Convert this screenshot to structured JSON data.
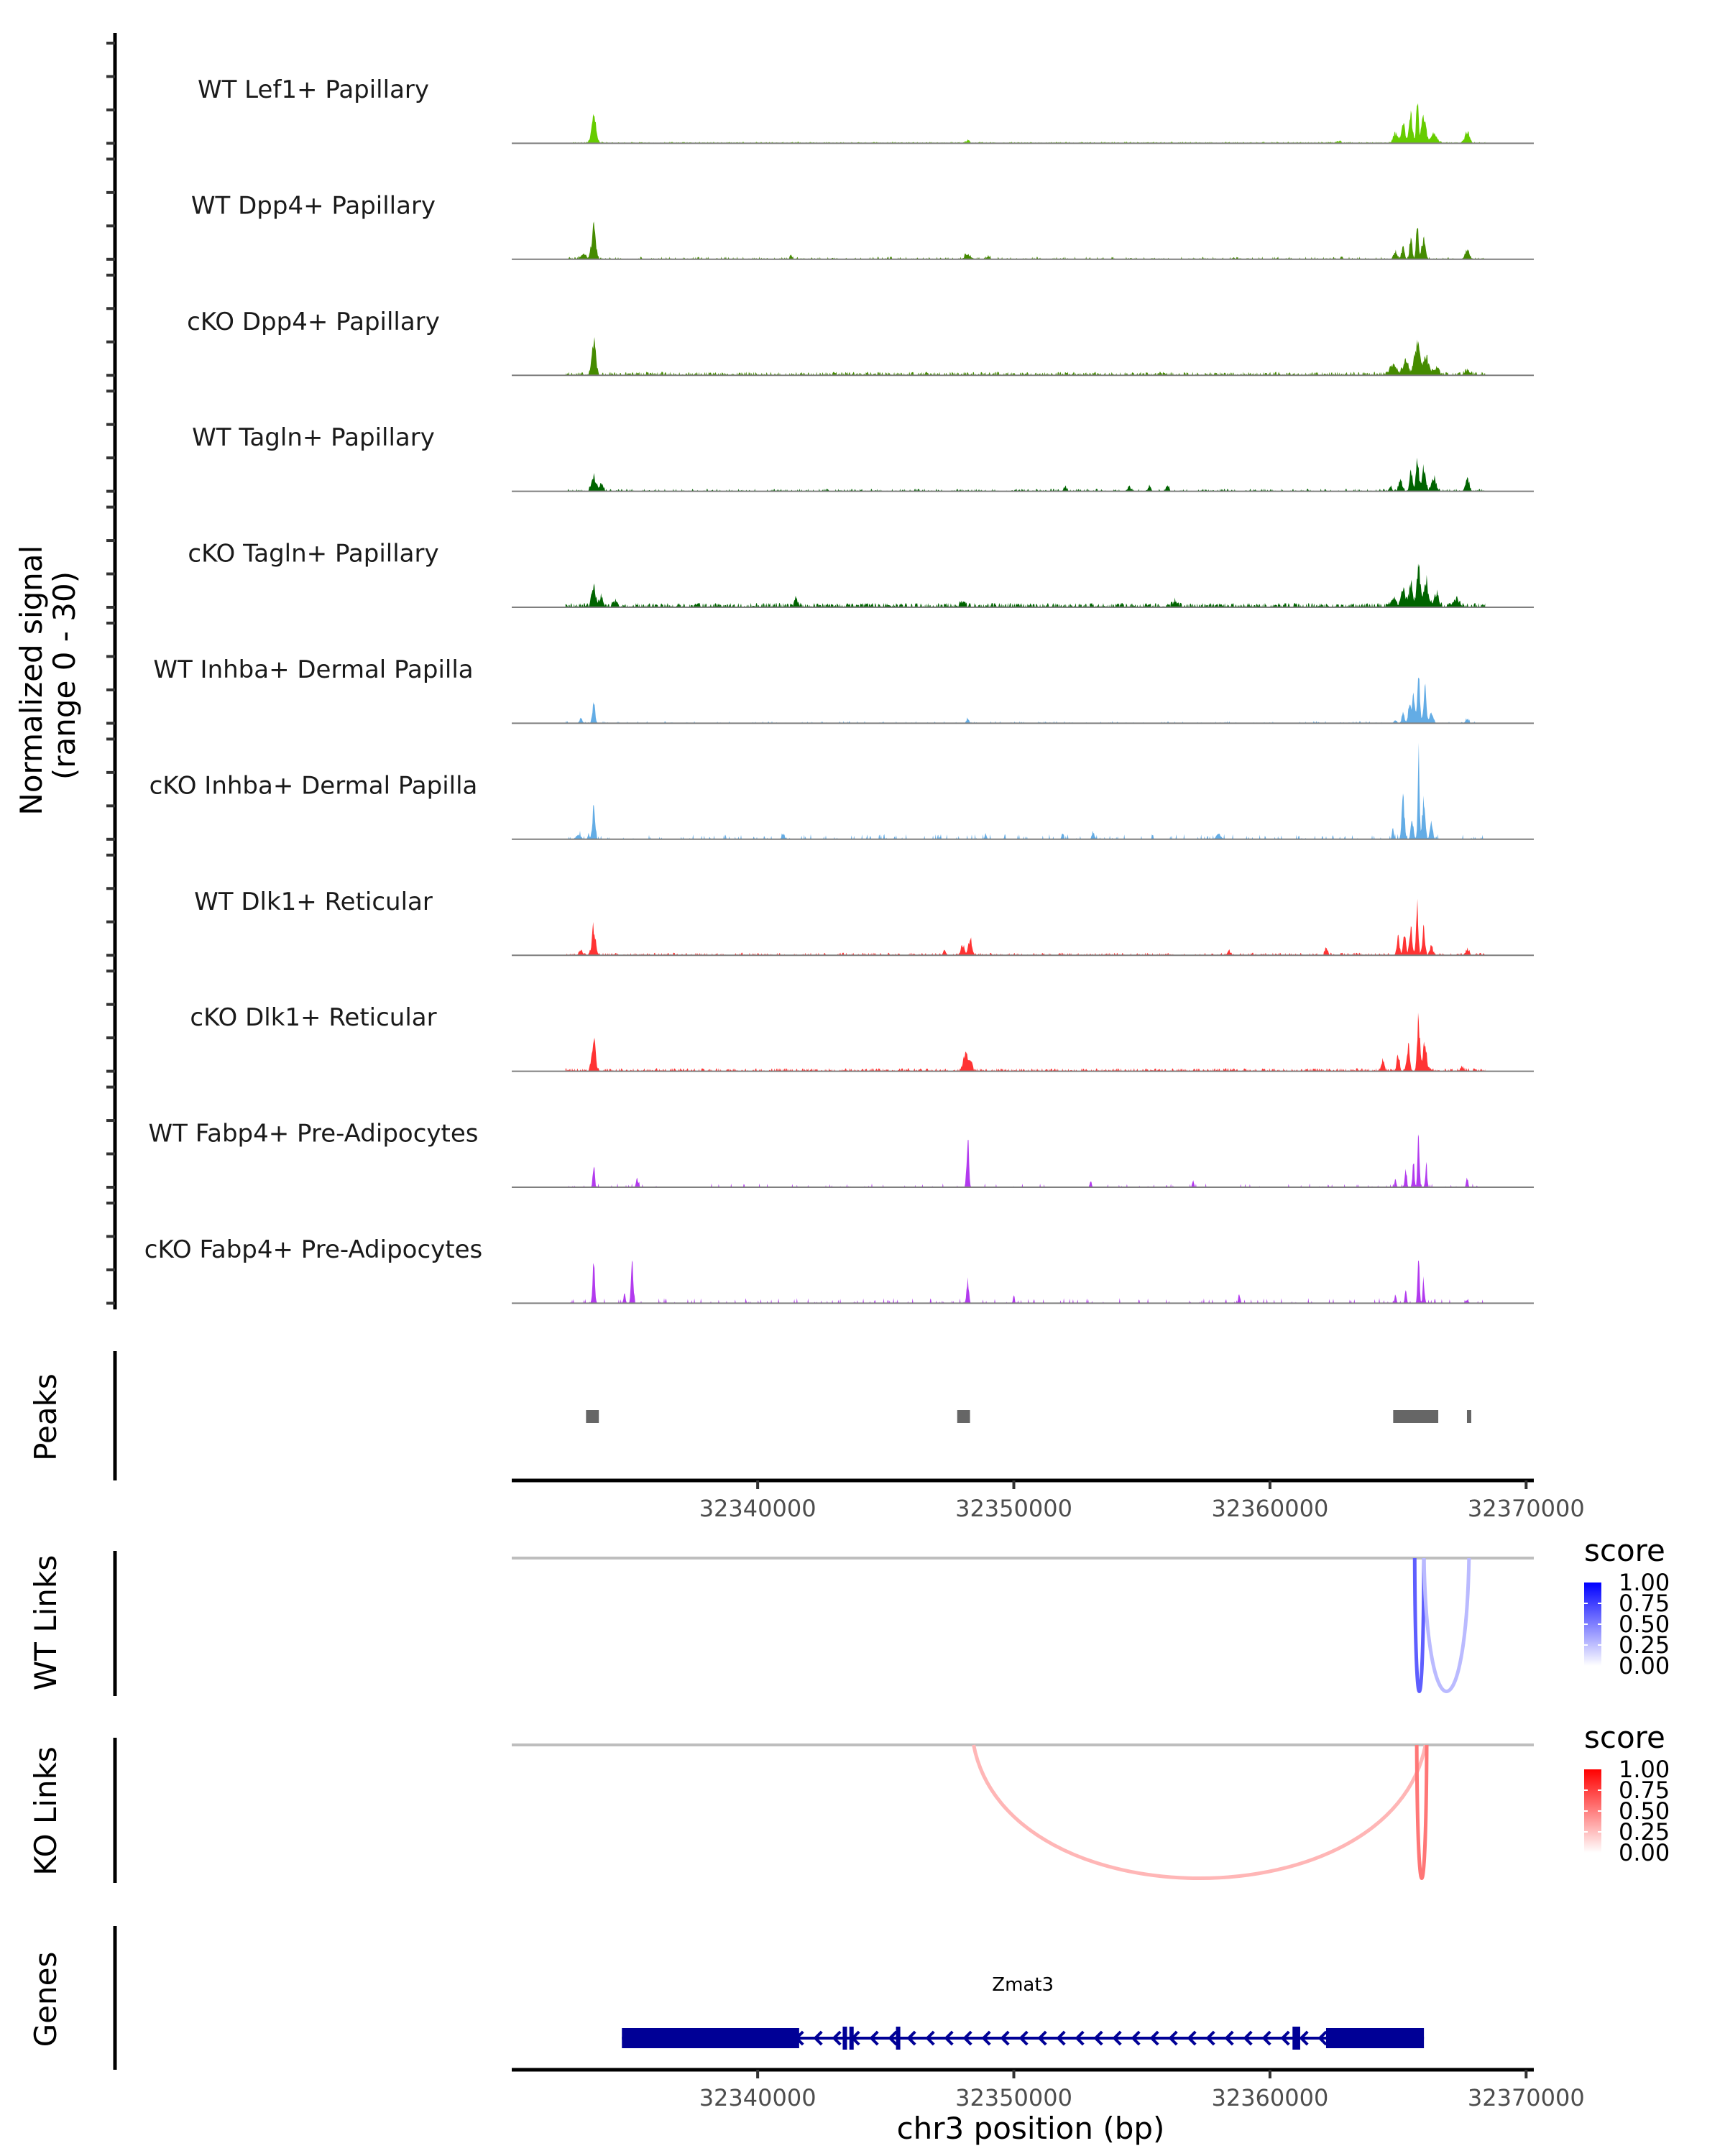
{
  "chart_data": {
    "type": "area",
    "title": "",
    "region": {
      "chromosome": "chr3",
      "start": 32330400,
      "end": 32370300
    },
    "xlabel": "chr3 position (bp)",
    "x_ticks": [
      32340000,
      32350000,
      32360000,
      32370000
    ],
    "x_tick_labels": [
      "32340000",
      "32350000",
      "32360000",
      "32370000"
    ],
    "coverage": {
      "ylabel_line1": "Normalized signal",
      "ylabel_line2": "(range 0 - 30)",
      "ylim": [
        0,
        30
      ],
      "y_ticks": [
        0,
        10,
        20,
        30
      ],
      "tracks": [
        {
          "name": "WT Lef1+ Papillary",
          "color": "#66CC00",
          "peaks": [
            [
              32333600,
              8,
              250
            ],
            [
              32364900,
              3,
              250
            ],
            [
              32365200,
              6,
              200
            ],
            [
              32365500,
              8,
              200
            ],
            [
              32365750,
              14,
              120
            ],
            [
              32366000,
              8,
              250
            ],
            [
              32366400,
              3,
              300
            ],
            [
              32367700,
              3.5,
              250
            ],
            [
              32348200,
              0.8,
              200
            ],
            [
              32362700,
              0.6,
              200
            ]
          ],
          "noise": 0.35,
          "noise_density": 0.55,
          "seed": 1
        },
        {
          "name": "WT Dpp4+ Papillary",
          "color": "#458B00",
          "peaks": [
            [
              32333600,
              10,
              220
            ],
            [
              32333200,
              1.5,
              300
            ],
            [
              32341300,
              1.5,
              120
            ],
            [
              32348200,
              1.5,
              300
            ],
            [
              32349000,
              0.7,
              200
            ],
            [
              32362800,
              0.9,
              120
            ],
            [
              32364900,
              2.5,
              200
            ],
            [
              32365200,
              4,
              150
            ],
            [
              32365500,
              6,
              150
            ],
            [
              32365750,
              11,
              120
            ],
            [
              32366000,
              6,
              200
            ],
            [
              32367700,
              2.5,
              250
            ]
          ],
          "noise": 0.6,
          "noise_density": 0.25,
          "seed": 2
        },
        {
          "name": "cKO Dpp4+ Papillary",
          "color": "#458B00",
          "peaks": [
            [
              32333600,
              10,
              220
            ],
            [
              32364800,
              2.5,
              400
            ],
            [
              32365300,
              4,
              300
            ],
            [
              32365750,
              9,
              300
            ],
            [
              32366100,
              5,
              300
            ],
            [
              32366500,
              2,
              300
            ],
            [
              32367700,
              1.2,
              300
            ]
          ],
          "noise": 0.8,
          "noise_density": 0.6,
          "seed": 3
        },
        {
          "name": "WT Tagln+ Papillary",
          "color": "#006400",
          "peaks": [
            [
              32333600,
              4,
              250
            ],
            [
              32333900,
              2.5,
              200
            ],
            [
              32352000,
              1.2,
              150
            ],
            [
              32354500,
              1.2,
              200
            ],
            [
              32355300,
              1.5,
              150
            ],
            [
              32356000,
              1.5,
              150
            ],
            [
              32364700,
              1.5,
              150
            ],
            [
              32365100,
              3,
              200
            ],
            [
              32365500,
              6,
              150
            ],
            [
              32365750,
              11,
              150
            ],
            [
              32366000,
              7,
              200
            ],
            [
              32366400,
              4,
              250
            ],
            [
              32367700,
              4,
              200
            ]
          ],
          "noise": 0.6,
          "noise_density": 0.3,
          "seed": 4
        },
        {
          "name": "cKO Tagln+ Papillary",
          "color": "#006400",
          "peaks": [
            [
              32333600,
              6,
              220
            ],
            [
              32333900,
              3,
              200
            ],
            [
              32334400,
              1.5,
              200
            ],
            [
              32341500,
              2,
              200
            ],
            [
              32348000,
              1.5,
              250
            ],
            [
              32356300,
              1.8,
              250
            ],
            [
              32364800,
              2,
              300
            ],
            [
              32365200,
              5,
              250
            ],
            [
              32365500,
              7,
              200
            ],
            [
              32365800,
              11,
              200
            ],
            [
              32366100,
              7,
              250
            ],
            [
              32366500,
              4,
              250
            ],
            [
              32367300,
              2,
              300
            ]
          ],
          "noise": 1.0,
          "noise_density": 0.6,
          "seed": 5
        },
        {
          "name": "WT Inhba+ Dermal Papilla",
          "color": "#63ACE5",
          "peaks": [
            [
              32333600,
              6,
              150
            ],
            [
              32333100,
              1.5,
              150
            ],
            [
              32348200,
              1.2,
              150
            ],
            [
              32364900,
              1,
              150
            ],
            [
              32365200,
              3,
              150
            ],
            [
              32365450,
              6,
              150
            ],
            [
              32365600,
              8,
              150
            ],
            [
              32365800,
              13,
              150
            ],
            [
              32366050,
              10,
              150
            ],
            [
              32366300,
              3,
              200
            ],
            [
              32367700,
              1,
              200
            ]
          ],
          "noise": 0.5,
          "noise_density": 0.12,
          "seed": 6
        },
        {
          "name": "cKO Inhba+ Dermal Papilla",
          "color": "#63ACE5",
          "peaks": [
            [
              32333600,
              9,
              150
            ],
            [
              32333000,
              1.5,
              250
            ],
            [
              32333400,
              1.5,
              100
            ],
            [
              32341000,
              1.5,
              150
            ],
            [
              32348900,
              2,
              100
            ],
            [
              32351900,
              2,
              100
            ],
            [
              32353100,
              2,
              150
            ],
            [
              32358000,
              1.5,
              250
            ],
            [
              32364800,
              3,
              100
            ],
            [
              32365200,
              12,
              150
            ],
            [
              32365550,
              5,
              150
            ],
            [
              32365800,
              24,
              100
            ],
            [
              32366000,
              12,
              150
            ],
            [
              32366300,
              5,
              150
            ]
          ],
          "noise": 1.2,
          "noise_density": 0.12,
          "seed": 7
        },
        {
          "name": "WT Dlk1+ Reticular",
          "color": "#FF3333",
          "peaks": [
            [
              32333600,
              8,
              200
            ],
            [
              32333100,
              1.5,
              200
            ],
            [
              32348000,
              3,
              200
            ],
            [
              32348300,
              4.5,
              200
            ],
            [
              32347300,
              1.5,
              150
            ],
            [
              32358400,
              1.2,
              200
            ],
            [
              32362200,
              2,
              150
            ],
            [
              32365000,
              5,
              150
            ],
            [
              32365250,
              6,
              150
            ],
            [
              32365500,
              8,
              150
            ],
            [
              32365750,
              14,
              120
            ],
            [
              32366000,
              8,
              150
            ],
            [
              32366300,
              3,
              150
            ],
            [
              32367700,
              1.5,
              200
            ]
          ],
          "noise": 0.6,
          "noise_density": 0.35,
          "seed": 8
        },
        {
          "name": "cKO Dlk1+ Reticular",
          "color": "#FF3333",
          "peaks": [
            [
              32333600,
              10,
              200
            ],
            [
              32348100,
              5,
              250
            ],
            [
              32348300,
              3,
              200
            ],
            [
              32364400,
              3.5,
              150
            ],
            [
              32365000,
              4.5,
              150
            ],
            [
              32365400,
              7,
              150
            ],
            [
              32365800,
              16,
              150
            ],
            [
              32366050,
              8,
              200
            ],
            [
              32367500,
              1,
              200
            ]
          ],
          "noise": 0.7,
          "noise_density": 0.5,
          "seed": 9
        },
        {
          "name": "WT Fabp4+ Pre-Adipocytes",
          "color": "#B23AEE",
          "peaks": [
            [
              32333600,
              7,
              100
            ],
            [
              32335300,
              2.5,
              120
            ],
            [
              32348200,
              14,
              120
            ],
            [
              32353000,
              2,
              100
            ],
            [
              32357000,
              1.8,
              100
            ],
            [
              32364900,
              2,
              100
            ],
            [
              32365300,
              5,
              100
            ],
            [
              32365600,
              8,
              100
            ],
            [
              32365800,
              15,
              100
            ],
            [
              32366100,
              7,
              100
            ],
            [
              32367700,
              3,
              100
            ]
          ],
          "noise": 0.9,
          "noise_density": 0.08,
          "seed": 10
        },
        {
          "name": "cKO Fabp4+ Pre-Adipocytes",
          "color": "#B23AEE",
          "peaks": [
            [
              32333600,
              12,
              120
            ],
            [
              32335100,
              11,
              120
            ],
            [
              32334800,
              3,
              100
            ],
            [
              32348200,
              7,
              120
            ],
            [
              32350000,
              2.5,
              80
            ],
            [
              32358800,
              3,
              100
            ],
            [
              32364900,
              2.5,
              100
            ],
            [
              32365300,
              3.5,
              100
            ],
            [
              32365800,
              16,
              100
            ],
            [
              32366000,
              7,
              100
            ],
            [
              32367700,
              1,
              150
            ]
          ],
          "noise": 1.2,
          "noise_density": 0.1,
          "seed": 11
        }
      ]
    },
    "peaks_track": {
      "label": "Peaks",
      "color": "#666666",
      "intervals": [
        [
          32333300,
          32333800
        ],
        [
          32347790,
          32348290
        ],
        [
          32364810,
          32366570
        ],
        [
          32367690,
          32367830
        ]
      ]
    },
    "links": [
      {
        "label": "WT Links",
        "legend_title": "score",
        "legend_ticks": [
          "1.00",
          "0.75",
          "0.50",
          "0.25",
          "0.00"
        ],
        "color_low": "#FFFFFF",
        "color_high": "#0000FF",
        "arcs": [
          {
            "start": 32365650,
            "end": 32366010,
            "score": 0.68
          },
          {
            "start": 32366010,
            "end": 32367770,
            "score": 0.2
          }
        ]
      },
      {
        "label": "KO Links",
        "legend_title": "score",
        "legend_ticks": [
          "1.00",
          "0.75",
          "0.50",
          "0.25",
          "0.00"
        ],
        "color_low": "#FFFFFF",
        "color_high": "#FF0000",
        "arcs": [
          {
            "start": 32348430,
            "end": 32366070,
            "score": 0.22
          },
          {
            "start": 32365730,
            "end": 32366120,
            "score": 0.55
          }
        ]
      }
    ],
    "genes": {
      "label": "Genes",
      "color": "#000096",
      "items": [
        {
          "name": "Zmat3",
          "strand": "-",
          "start": 32334700,
          "end": 32366010,
          "exons": [
            [
              32334700,
              32341620
            ],
            [
              32343320,
              32343380
            ],
            [
              32343580,
              32343660
            ],
            [
              32345400,
              32345470
            ],
            [
              32360880,
              32361180
            ],
            [
              32362190,
              32366010
            ]
          ]
        }
      ]
    }
  }
}
